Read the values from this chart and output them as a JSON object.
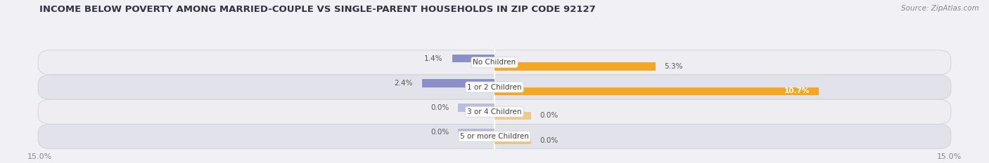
{
  "title": "INCOME BELOW POVERTY AMONG MARRIED-COUPLE VS SINGLE-PARENT HOUSEHOLDS IN ZIP CODE 92127",
  "source": "Source: ZipAtlas.com",
  "categories": [
    "No Children",
    "1 or 2 Children",
    "3 or 4 Children",
    "5 or more Children"
  ],
  "married_values": [
    1.4,
    2.4,
    0.0,
    0.0
  ],
  "single_values": [
    5.3,
    10.7,
    0.0,
    0.0
  ],
  "married_color": "#8b8fc8",
  "single_color": "#f5a623",
  "xlim": 15.0,
  "bar_height": 0.32,
  "title_fontsize": 9.5,
  "source_fontsize": 7.5,
  "category_fontsize": 7.5,
  "value_fontsize": 7.5,
  "row_bg_light": "#ededf2",
  "row_bg_dark": "#e2e2ea",
  "fig_bg": "#f0f0f5",
  "zero_bar_width": 1.2
}
